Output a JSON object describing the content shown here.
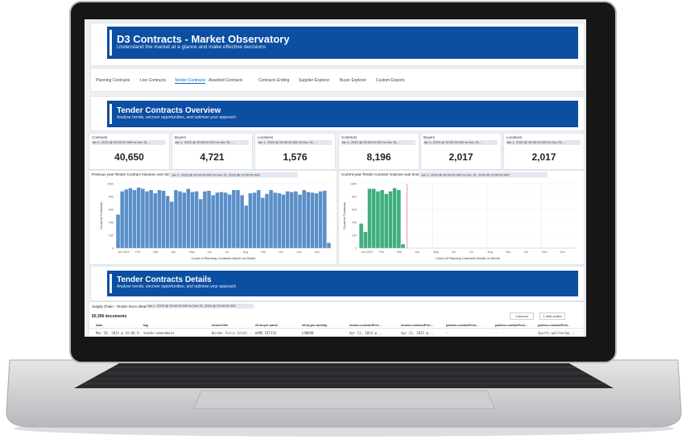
{
  "header": {
    "title": "D3 Contracts - Market Observatory",
    "subtitle": "Understand the market at a glance and make effective decisions"
  },
  "tabs": [
    {
      "label": "Planning Contracts",
      "active": false
    },
    {
      "label": "Live Contracts",
      "active": false
    },
    {
      "label": "Tender Contracts",
      "active": true
    },
    {
      "label": "Awarded Contracts",
      "active": false
    },
    {
      "label": "Contracts Ending",
      "active": false
    },
    {
      "label": "Supplier Explorer",
      "active": false
    },
    {
      "label": "Buyer Explorer",
      "active": false
    },
    {
      "label": "Custom Exports",
      "active": false
    }
  ],
  "overview": {
    "title": "Tender Contracts Overview",
    "subtitle": "Analyse trends, uncover opportunities, and optimise your approach"
  },
  "metrics": [
    {
      "label": "Contracts",
      "filter": "Jan 1, 2023 @ 00:00:00.000 to Dec 31, ...",
      "value": "40,650"
    },
    {
      "label": "Buyers",
      "filter": "Jan 1, 2023 @ 00:00:00.000 to Dec 31, ...",
      "value": "4,721"
    },
    {
      "label": "Locations",
      "filter": "Jan 1, 2023 @ 00:00:00.000 to Dec 31, ...",
      "value": "1,576"
    },
    {
      "label": "Contracts",
      "filter": "Jan 1, 2024 @ 00:00:00.000 to Dec 31, ...",
      "value": "8,196"
    },
    {
      "label": "Buyers",
      "filter": "Jan 1, 2024 @ 00:00:00.000 to Dec 31, ...",
      "value": "2,017"
    },
    {
      "label": "Locations",
      "filter": "Jan 1, 2024 @ 00:00:00.000 to Dec 31, ...",
      "value": "2,017"
    }
  ],
  "charts": [
    {
      "type": "bar",
      "title": "Previous year Tender Contract Volumes over time",
      "filter": "Jan 1, 2023 @ 00:00:00.000 to Dec 31, 2023 @ 23:00:00.000",
      "y_label": "Count of Contracts",
      "x_label": "Count of Planning Contracts Month on Month",
      "x_labels": [
        "Jan 2023",
        "Feb",
        "Mar",
        "Apr",
        "May",
        "Jun",
        "Jul",
        "Aug",
        "Sep",
        "Oct",
        "Nov",
        "Dec"
      ],
      "ylim": [
        0,
        1000
      ],
      "yticks": [
        0,
        200,
        400,
        600,
        800,
        1000
      ],
      "color": "#5b8fc9",
      "values": [
        520,
        880,
        910,
        930,
        900,
        940,
        920,
        880,
        900,
        850,
        900,
        890,
        810,
        720,
        900,
        880,
        860,
        920,
        870,
        880,
        760,
        880,
        890,
        820,
        860,
        870,
        860,
        830,
        900,
        900,
        820,
        660,
        850,
        860,
        900,
        780,
        840,
        900,
        860,
        850,
        830,
        880,
        870,
        880,
        830,
        900,
        870,
        860,
        850,
        880,
        890,
        80
      ]
    },
    {
      "type": "bar",
      "title": "Current year Tender Contract Volumes over time",
      "filter": "Jan 1, 2024 @ 00:00:00.000 to Dec 31, 2024 @ 23:00:00.000",
      "y_label": "Count of Contracts",
      "x_label": "Count of Planning Contracts Month on Month",
      "x_labels": [
        "Jan 2024",
        "Feb",
        "Mar",
        "Apr",
        "May",
        "Jun",
        "Jul",
        "Aug",
        "Sep",
        "Oct",
        "Nov",
        "Dec"
      ],
      "ylim": [
        0,
        1000
      ],
      "yticks": [
        0,
        200,
        400,
        600,
        800,
        1000
      ],
      "color": "#3fae7e",
      "values": [
        380,
        250,
        920,
        920,
        880,
        900,
        840,
        880,
        930,
        900,
        60,
        null,
        null,
        null,
        null,
        null,
        null,
        null,
        null,
        null,
        null,
        null,
        null,
        null,
        null,
        null,
        null,
        null,
        null,
        null,
        null,
        null,
        null,
        null,
        null,
        null,
        null,
        null,
        null,
        null,
        null,
        null,
        null,
        null,
        null,
        null,
        null,
        null,
        null,
        null,
        null,
        null
      ]
    }
  ],
  "details": {
    "title": "Tender Contracts Details",
    "subtitle": "Analyse trends, uncover opportunities, and optimise your approach"
  },
  "table": {
    "title": "Supply Chain - Tender Docs detail",
    "filter": "Jan 1, 2023 @ 00:00:00.000 to Dec 31, 2024 @ 23:00:00.000",
    "count": "60,306 documents",
    "buttons": [
      "Columns",
      "1 field sorted"
    ],
    "columns": [
      "date",
      "tag",
      "tender.title",
      "d3.buyer.name",
      "d3.buyer.locality",
      "tender.contractPeri...",
      "tender.contractPeri...",
      "parties.contactPoin...",
      "parties.contactPoin...",
      "parties.contactPoin..."
    ],
    "rows": [
      [
        "Mar 19, 2024 @ 14:46:19.000",
        "tender/amendment",
        "Border Force Inlet...",
        "HOME OFFICE",
        "LONDON",
        "Apr 11, 2024 @...",
        "Apr 11, 2025 @...",
        "-",
        "-",
        "Sports.welltech@..."
      ]
    ]
  }
}
